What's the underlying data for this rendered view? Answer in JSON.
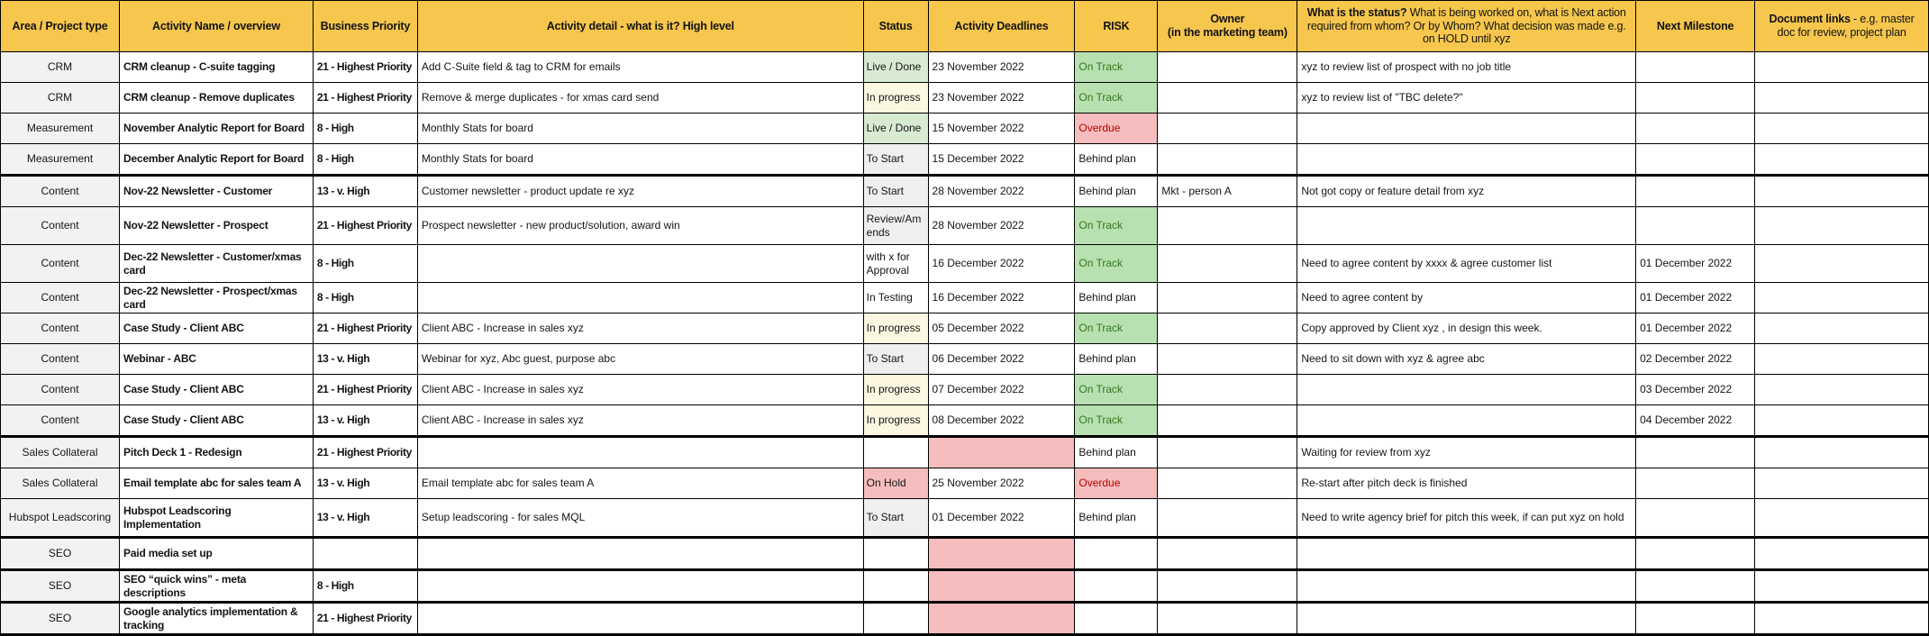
{
  "colors": {
    "header_bg": "#F6C64D",
    "area_fill": "#F2F2F2",
    "green_fill": "#D9EAD3",
    "cream_fill": "#FBF7E1",
    "gray_fill": "#EFEFEF",
    "red_fill": "#F5BDBD",
    "risk_green_bg": "#B7E1B1",
    "risk_green_text": "#38761D",
    "risk_red_text": "#C00000"
  },
  "table": {
    "columns": [
      {
        "key": "area",
        "label": "Area / Project type",
        "width_pct": 6.17,
        "align": "center"
      },
      {
        "key": "name",
        "label": "Activity Name / overview",
        "width_pct": 10.04,
        "align": "left",
        "bold": true
      },
      {
        "key": "priority",
        "label": "Business Priority",
        "width_pct": 5.42,
        "align": "left",
        "bold": true
      },
      {
        "key": "detail",
        "label": "Activity detail - what is it? High level",
        "width_pct": 23.12,
        "align": "left"
      },
      {
        "key": "status",
        "label": "Status",
        "width_pct": 3.36,
        "align": "left"
      },
      {
        "key": "deadline",
        "label": "Activity Deadlines",
        "width_pct": 7.61,
        "align": "left"
      },
      {
        "key": "risk",
        "label": "RISK",
        "width_pct": 4.3,
        "align": "left"
      },
      {
        "key": "owner",
        "label": "Owner",
        "label2": "(in the marketing team)",
        "width_pct": 7.24,
        "align": "left"
      },
      {
        "key": "status_note",
        "label_bold": "What is the status?",
        "label_rest": " What is being worked on, what is Next action required from whom? Or by Whom? What decision was made e.g. on HOLD until xyz",
        "width_pct": 17.56,
        "align": "left"
      },
      {
        "key": "milestone",
        "label": "Next Milestone",
        "width_pct": 6.17,
        "align": "left"
      },
      {
        "key": "doc_links",
        "label_bold": "Document links",
        "label_rest": " - e.g. master doc for review, project plan",
        "width_pct": 9.01,
        "align": "left"
      }
    ],
    "rows": [
      {
        "area": "CRM",
        "name": "CRM cleanup - C-suite tagging",
        "priority": "21 - Highest Priority",
        "detail": "Add C-Suite field & tag to CRM for emails",
        "status": "Live / Done",
        "status_fill": "green",
        "deadline": "23 November 2022",
        "deadline_fill": "none",
        "risk": "On Track",
        "risk_fill": "green",
        "owner": "",
        "status_note": "xyz to review list of prospect with no job title",
        "milestone": "",
        "doc_links": "",
        "thick": false,
        "tall": false
      },
      {
        "area": "CRM",
        "name": "CRM cleanup - Remove duplicates",
        "priority": "21 - Highest Priority",
        "detail": "Remove & merge duplicates - for xmas card send",
        "status": "In progress",
        "status_fill": "cream",
        "deadline": "23 November 2022",
        "deadline_fill": "none",
        "risk": "On Track",
        "risk_fill": "green",
        "owner": "",
        "status_note": "xyz to review list of \"TBC delete?\"",
        "milestone": "",
        "doc_links": "",
        "thick": false,
        "tall": false
      },
      {
        "area": "Measurement",
        "name": "November Analytic Report for Board",
        "priority": "8 - High",
        "detail": "Monthly Stats for board",
        "status": "Live / Done",
        "status_fill": "green",
        "deadline": "15 November 2022",
        "deadline_fill": "none",
        "risk": "Overdue",
        "risk_fill": "red",
        "owner": "",
        "status_note": "",
        "milestone": "",
        "doc_links": "",
        "thick": false,
        "tall": false
      },
      {
        "area": "Measurement",
        "name": "December Analytic Report for Board",
        "priority": "8 - High",
        "detail": "Monthly Stats for board",
        "status": "To Start",
        "status_fill": "gray",
        "deadline": "15 December 2022",
        "deadline_fill": "none",
        "risk": "Behind plan",
        "risk_fill": "none",
        "owner": "",
        "status_note": "",
        "milestone": "",
        "doc_links": "",
        "thick": true,
        "tall": false
      },
      {
        "area": "Content",
        "name": "Nov-22 Newsletter - Customer",
        "priority": "13 - v. High",
        "detail": "Customer newsletter - product update re xyz",
        "status": "To Start",
        "status_fill": "gray",
        "deadline": "28 November 2022",
        "deadline_fill": "none",
        "risk": "Behind plan",
        "risk_fill": "none",
        "owner": "Mkt - person A",
        "status_note": "Not got copy or feature detail from xyz",
        "milestone": "",
        "doc_links": "",
        "thick": false,
        "tall": false
      },
      {
        "area": "Content",
        "name": "Nov-22  Newsletter - Prospect",
        "priority": "21 - Highest Priority",
        "detail": "Prospect newsletter - new product/solution, award win",
        "status": "Review/Amends",
        "status_fill": "gray",
        "deadline": "28 November 2022",
        "deadline_fill": "none",
        "risk": "On Track",
        "risk_fill": "green",
        "owner": "",
        "status_note": "",
        "milestone": "",
        "doc_links": "",
        "thick": false,
        "tall": true
      },
      {
        "area": "Content",
        "name": "Dec-22 Newsletter - Customer/xmas card",
        "priority": "8 - High",
        "detail": "",
        "status": "with x for Approval",
        "status_fill": "none",
        "deadline": "16 December 2022",
        "deadline_fill": "none",
        "risk": "On Track",
        "risk_fill": "green",
        "owner": "",
        "status_note": "Need to agree content by xxxx & agree customer list",
        "milestone": "01 December 2022",
        "doc_links": "",
        "thick": false,
        "tall": true
      },
      {
        "area": "Content",
        "name": "Dec-22 Newsletter - Prospect/xmas card",
        "priority": "8 - High",
        "detail": "",
        "status": "In Testing",
        "status_fill": "none",
        "deadline": "16 December 2022",
        "deadline_fill": "none",
        "risk": "Behind plan",
        "risk_fill": "none",
        "owner": "",
        "status_note": "Need to agree content by",
        "milestone": "01 December 2022",
        "doc_links": "",
        "thick": false,
        "tall": false
      },
      {
        "area": "Content",
        "name": "Case Study - Client ABC",
        "priority": "21 - Highest Priority",
        "detail": "Client ABC - Increase in sales xyz",
        "status": "In progress",
        "status_fill": "cream",
        "deadline": "05 December 2022",
        "deadline_fill": "none",
        "risk": "On Track",
        "risk_fill": "green",
        "owner": "",
        "status_note": "Copy approved by Client xyz , in design this week.",
        "milestone": "01 December 2022",
        "doc_links": "",
        "thick": false,
        "tall": false
      },
      {
        "area": "Content",
        "name": "Webinar - ABC",
        "priority": "13 - v. High",
        "detail": "Webinar for xyz, Abc guest, purpose abc",
        "status": "To Start",
        "status_fill": "gray",
        "deadline": "06 December 2022",
        "deadline_fill": "none",
        "risk": "Behind plan",
        "risk_fill": "none",
        "owner": "",
        "status_note": "Need to sit down with xyz & agree abc",
        "milestone": "02 December 2022",
        "doc_links": "",
        "thick": false,
        "tall": false
      },
      {
        "area": "Content",
        "name": "Case Study - Client ABC",
        "priority": "21 - Highest Priority",
        "detail": "Client ABC - Increase in sales xyz",
        "status": "In progress",
        "status_fill": "cream",
        "deadline": "07 December 2022",
        "deadline_fill": "none",
        "risk": "On Track",
        "risk_fill": "green",
        "owner": "",
        "status_note": "",
        "milestone": "03 December 2022",
        "doc_links": "",
        "thick": false,
        "tall": false
      },
      {
        "area": "Content",
        "name": "Case Study - Client ABC",
        "priority": "13 - v. High",
        "detail": "Client ABC - Increase in sales xyz",
        "status": "In progress",
        "status_fill": "cream",
        "deadline": "08 December 2022",
        "deadline_fill": "none",
        "risk": "On Track",
        "risk_fill": "green",
        "owner": "",
        "status_note": "",
        "milestone": "04 December 2022",
        "doc_links": "",
        "thick": true,
        "tall": false
      },
      {
        "area": "Sales Collateral",
        "name": "Pitch Deck 1 - Redesign",
        "priority": "21 - Highest Priority",
        "detail": "",
        "status": "",
        "status_fill": "none",
        "deadline": "",
        "deadline_fill": "red",
        "risk": "Behind plan",
        "risk_fill": "none",
        "owner": "",
        "status_note": "Waiting for review from xyz",
        "milestone": "",
        "doc_links": "",
        "thick": false,
        "tall": false
      },
      {
        "area": "Sales Collateral",
        "name": "Email template abc for sales team A",
        "priority": "13 - v. High",
        "detail": "Email template abc for sales team A",
        "status": "On Hold",
        "status_fill": "red",
        "deadline": "25 November 2022",
        "deadline_fill": "none",
        "risk": "Overdue",
        "risk_fill": "red",
        "owner": "",
        "status_note": "Re-start after pitch deck is finished",
        "milestone": "",
        "doc_links": "",
        "thick": false,
        "tall": false
      },
      {
        "area": "Hubspot Leadscoring",
        "name": "Hubspot Leadscoring Implementation",
        "priority": "13 - v. High",
        "detail": "Setup leadscoring - for sales MQL",
        "status": "To Start",
        "status_fill": "gray",
        "deadline": "01 December 2022",
        "deadline_fill": "none",
        "risk": "Behind plan",
        "risk_fill": "none",
        "owner": "",
        "status_note": "Need to write agency brief for pitch this week, if can put xyz on hold",
        "milestone": "",
        "doc_links": "",
        "thick": true,
        "tall": true
      },
      {
        "area": "SEO",
        "name": "Paid media set up",
        "priority": "",
        "detail": "",
        "status": "",
        "status_fill": "none",
        "deadline": "",
        "deadline_fill": "red",
        "risk": "",
        "risk_fill": "none",
        "owner": "",
        "status_note": "",
        "milestone": "",
        "doc_links": "",
        "thick": true,
        "tall": false
      },
      {
        "area": "SEO",
        "name": "SEO “quick wins” - meta descriptions",
        "priority": "8 - High",
        "detail": "",
        "status": "",
        "status_fill": "none",
        "deadline": "",
        "deadline_fill": "red",
        "risk": "",
        "risk_fill": "none",
        "owner": "",
        "status_note": "",
        "milestone": "",
        "doc_links": "",
        "thick": true,
        "tall": false
      },
      {
        "area": "SEO",
        "name": "Google analytics implementation & tracking",
        "priority": "21 - Highest Priority",
        "detail": "",
        "status": "",
        "status_fill": "none",
        "deadline": "",
        "deadline_fill": "red",
        "risk": "",
        "risk_fill": "none",
        "owner": "",
        "status_note": "",
        "milestone": "",
        "doc_links": "",
        "thick": true,
        "tall": false
      }
    ]
  }
}
